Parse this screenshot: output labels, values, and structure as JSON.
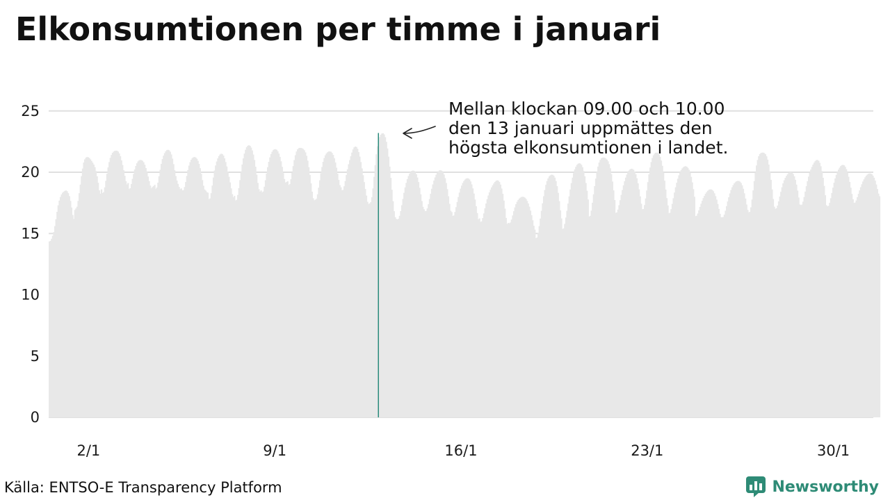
{
  "chart_data": {
    "type": "bar",
    "title": "Elkonsumtionen per timme i januari",
    "x_start": "2024-01-01T00:00",
    "x_step": "1 hour",
    "x_tick_labels": [
      "2/1",
      "9/1",
      "16/1",
      "23/1",
      "30/1"
    ],
    "y_tick_labels": [
      "0",
      "5",
      "10",
      "15",
      "20",
      "25"
    ],
    "ylim": [
      0,
      25
    ],
    "grid": true,
    "colors": {
      "bars": "#e8e8e8",
      "highlight": "#2a8a7a",
      "grid": "#e0e0e0"
    },
    "daily_profile": {
      "min": [
        14.3,
        16.8,
        18.2,
        18.5,
        18.5,
        18.3,
        17.7,
        17.6,
        18.3,
        18.9,
        18.9,
        17.7,
        17.1,
        16.7,
        16.4,
        16.1,
        15.9,
        15.8,
        14.6,
        15.3,
        16.3,
        16.6,
        16.9,
        16.6,
        16.4,
        16.3,
        16.7,
        17.0,
        17.3,
        17.2,
        17.5
      ],
      "max": [
        18.6,
        21.3,
        21.8,
        21.0,
        22.0,
        21.3,
        21.5,
        22.2,
        21.9,
        22.0,
        21.7,
        22.1,
        23.2,
        20.2,
        20.2,
        19.6,
        19.4,
        18.0,
        19.8,
        20.7,
        21.2,
        20.3,
        21.6,
        20.5,
        18.6,
        19.3,
        21.6,
        20.0,
        21.0,
        20.6,
        19.9
      ]
    },
    "series": [
      {
        "values": [
          14.35,
          14.4,
          14.57,
          14.81,
          15.12,
          15.6,
          16.17,
          16.77,
          17.3,
          17.69,
          17.98,
          18.19,
          18.33,
          18.41,
          18.48,
          18.51,
          18.45,
          18.29,
          18.05,
          17.66,
          17.12,
          16.51,
          16.19,
          16.92,
          17.04,
          17.19,
          17.66,
          18.29,
          18.99,
          19.68,
          20.3,
          20.79,
          21.05,
          21.18,
          21.24,
          21.22,
          21.16,
          21.05,
          20.92,
          20.78,
          20.62,
          20.42,
          20.1,
          19.67,
          19.14,
          18.52,
          18.25,
          18.6,
          18.3,
          18.37,
          18.76,
          19.3,
          19.87,
          20.39,
          20.83,
          21.17,
          21.41,
          21.58,
          21.68,
          21.74,
          21.76,
          21.75,
          21.68,
          21.53,
          21.3,
          20.97,
          20.59,
          20.16,
          19.71,
          19.27,
          19.0,
          19.12,
          18.63,
          18.7,
          19.04,
          19.46,
          19.86,
          20.22,
          20.51,
          20.73,
          20.88,
          20.97,
          21.0,
          20.99,
          20.93,
          20.81,
          20.61,
          20.34,
          20.01,
          19.65,
          19.28,
          18.91,
          18.69,
          18.79,
          18.87,
          18.97,
          18.63,
          18.75,
          19.15,
          19.67,
          20.2,
          20.68,
          21.07,
          21.35,
          21.56,
          21.71,
          21.8,
          21.83,
          21.79,
          21.67,
          21.45,
          21.11,
          20.66,
          20.16,
          19.69,
          19.32,
          19.05,
          18.8,
          18.62,
          18.68,
          18.52,
          18.54,
          18.79,
          19.2,
          19.7,
          20.18,
          20.54,
          20.82,
          21.02,
          21.15,
          21.22,
          21.24,
          21.2,
          21.1,
          20.93,
          20.68,
          20.33,
          19.87,
          19.36,
          18.9,
          18.59,
          18.5,
          18.38,
          18.33,
          17.8,
          17.86,
          18.29,
          18.91,
          19.57,
          20.14,
          20.55,
          20.87,
          21.13,
          21.32,
          21.45,
          21.51,
          21.48,
          21.36,
          21.13,
          20.83,
          20.47,
          20.06,
          19.63,
          19.17,
          18.68,
          18.21,
          17.96,
          18.07,
          17.7,
          17.75,
          18.14,
          18.7,
          19.36,
          20.02,
          20.63,
          21.13,
          21.52,
          21.83,
          22.04,
          22.16,
          22.2,
          22.15,
          22.01,
          21.78,
          21.44,
          21.0,
          20.45,
          19.8,
          19.13,
          18.62,
          18.41,
          18.51,
          18.36,
          18.43,
          18.82,
          19.35,
          19.9,
          20.41,
          20.85,
          21.21,
          21.48,
          21.67,
          21.8,
          21.87,
          21.88,
          21.83,
          21.71,
          21.52,
          21.25,
          20.89,
          20.44,
          19.93,
          19.45,
          19.16,
          19.2,
          19.26,
          18.96,
          19.03,
          19.43,
          19.96,
          20.5,
          20.99,
          21.39,
          21.69,
          21.87,
          21.96,
          21.99,
          21.98,
          21.95,
          21.89,
          21.79,
          21.62,
          21.34,
          20.94,
          20.41,
          19.78,
          19.09,
          18.41,
          17.88,
          17.71,
          17.76,
          17.83,
          18.2,
          18.74,
          19.34,
          19.92,
          20.43,
          20.85,
          21.16,
          21.38,
          21.53,
          21.63,
          21.69,
          21.7,
          21.67,
          21.57,
          21.41,
          21.15,
          20.8,
          20.37,
          19.88,
          19.37,
          18.95,
          18.77,
          18.53,
          18.56,
          18.85,
          19.28,
          19.77,
          20.24,
          20.65,
          20.99,
          21.31,
          21.6,
          21.86,
          22.03,
          22.1,
          22.06,
          21.91,
          21.64,
          21.27,
          20.83,
          20.31,
          19.76,
          19.19,
          18.63,
          18.09,
          17.59,
          17.4,
          17.46,
          17.56,
          17.96,
          18.68,
          19.63,
          20.58,
          21.46,
          22.12,
          22.57,
          22.87,
          23.06,
          23.16,
          23.18,
          23.09,
          22.86,
          22.48,
          21.94,
          21.27,
          20.46,
          19.54,
          18.57,
          17.63,
          16.82,
          16.33,
          16.19,
          16.15,
          16.2,
          16.44,
          16.83,
          17.31,
          17.82,
          18.32,
          18.76,
          19.13,
          19.44,
          19.69,
          19.88,
          20.02,
          20.11,
          20.14,
          20.11,
          20.02,
          19.84,
          19.57,
          19.2,
          18.73,
          18.2,
          17.65,
          17.18,
          16.98,
          16.83,
          16.85,
          17.05,
          17.39,
          17.81,
          18.24,
          18.65,
          19.01,
          19.32,
          19.58,
          19.8,
          19.96,
          20.08,
          20.15,
          20.16,
          20.12,
          20.01,
          19.81,
          19.52,
          19.12,
          18.62,
          18.04,
          17.42,
          16.86,
          16.75,
          16.43,
          16.48,
          16.76,
          17.15,
          17.57,
          17.98,
          18.34,
          18.66,
          18.91,
          19.12,
          19.28,
          19.4,
          19.48,
          19.51,
          19.49,
          19.41,
          19.25,
          19.01,
          18.68,
          18.26,
          17.77,
          17.23,
          16.67,
          16.16,
          16.23,
          15.95,
          15.99,
          16.26,
          16.64,
          17.06,
          17.45,
          17.8,
          18.1,
          18.35,
          18.57,
          18.76,
          18.93,
          19.08,
          19.21,
          19.3,
          19.34,
          19.31,
          19.2,
          18.99,
          18.67,
          18.24,
          17.69,
          17.03,
          16.27,
          15.78,
          15.86,
          15.84,
          15.9,
          16.14,
          16.47,
          16.82,
          17.13,
          17.39,
          17.59,
          17.74,
          17.85,
          17.93,
          17.98,
          18.0,
          17.98,
          17.92,
          17.82,
          17.66,
          17.45,
          17.19,
          16.87,
          16.5,
          16.08,
          15.63,
          15.32,
          14.62,
          14.68,
          15.05,
          15.6,
          16.22,
          16.85,
          17.46,
          18.04,
          18.55,
          18.97,
          19.28,
          19.5,
          19.66,
          19.75,
          19.8,
          19.79,
          19.72,
          19.56,
          19.28,
          18.87,
          18.32,
          17.64,
          16.89,
          16.23,
          15.37,
          15.42,
          15.78,
          16.3,
          16.86,
          17.44,
          18.03,
          18.59,
          19.11,
          19.56,
          19.93,
          20.23,
          20.44,
          20.6,
          20.69,
          20.73,
          20.7,
          20.6,
          20.41,
          20.1,
          19.67,
          19.12,
          18.49,
          17.78,
          16.38,
          16.44,
          16.87,
          17.51,
          18.2,
          18.87,
          19.48,
          20.02,
          20.46,
          20.79,
          21.0,
          21.13,
          21.19,
          21.2,
          21.18,
          21.12,
          21.03,
          20.89,
          20.66,
          20.32,
          19.85,
          19.24,
          18.52,
          17.73,
          16.68,
          16.72,
          16.95,
          17.31,
          17.72,
          18.15,
          18.55,
          18.93,
          19.27,
          19.56,
          19.81,
          20.0,
          20.14,
          20.24,
          20.28,
          20.27,
          20.2,
          20.06,
          19.83,
          19.51,
          19.1,
          18.6,
          18.03,
          17.43,
          16.98,
          17.0,
          17.32,
          17.86,
          18.51,
          19.19,
          19.83,
          20.38,
          20.83,
          21.16,
          21.38,
          21.52,
          21.59,
          21.6,
          21.57,
          21.46,
          21.26,
          20.95,
          20.52,
          19.97,
          19.31,
          18.59,
          17.89,
          17.29,
          16.65,
          16.7,
          16.99,
          17.42,
          17.88,
          18.34,
          18.77,
          19.14,
          19.47,
          19.75,
          19.98,
          20.17,
          20.31,
          20.41,
          20.47,
          20.49,
          20.45,
          20.36,
          20.2,
          19.96,
          19.62,
          19.17,
          18.62,
          18.0,
          16.42,
          16.45,
          16.63,
          16.89,
          17.17,
          17.43,
          17.67,
          17.89,
          18.07,
          18.24,
          18.37,
          18.48,
          18.56,
          18.6,
          18.6,
          18.55,
          18.45,
          18.28,
          18.05,
          17.76,
          17.41,
          17.01,
          16.61,
          16.33,
          16.33,
          16.35,
          16.54,
          16.86,
          17.23,
          17.61,
          17.96,
          18.27,
          18.55,
          18.77,
          18.95,
          19.09,
          19.19,
          19.26,
          19.29,
          19.29,
          19.23,
          19.12,
          18.93,
          18.65,
          18.28,
          17.85,
          17.37,
          16.92,
          16.73,
          16.77,
          17.14,
          17.77,
          18.52,
          19.28,
          19.97,
          20.55,
          21.0,
          21.31,
          21.48,
          21.57,
          21.6,
          21.6,
          21.56,
          21.47,
          21.3,
          21.03,
          20.62,
          20.07,
          19.38,
          18.6,
          17.82,
          17.19,
          17.02,
          17.06,
          17.28,
          17.62,
          18.01,
          18.4,
          18.77,
          19.09,
          19.34,
          19.54,
          19.7,
          19.83,
          19.93,
          19.99,
          20.0,
          19.96,
          19.86,
          19.67,
          19.38,
          18.99,
          18.5,
          17.94,
          17.37,
          17.32,
          17.36,
          17.6,
          17.98,
          18.42,
          18.86,
          19.27,
          19.64,
          19.95,
          20.21,
          20.43,
          20.62,
          20.78,
          20.91,
          20.99,
          21.0,
          20.93,
          20.77,
          20.49,
          20.09,
          19.55,
          18.88,
          18.12,
          17.31,
          17.22,
          17.26,
          17.5,
          17.88,
          18.31,
          18.74,
          19.14,
          19.49,
          19.78,
          20.02,
          20.21,
          20.37,
          20.5,
          20.58,
          20.6,
          20.56,
          20.44,
          20.25,
          19.98,
          19.63,
          19.21,
          18.74,
          18.23,
          17.79,
          17.5,
          17.53,
          17.7,
          17.96,
          18.24,
          18.52,
          18.78,
          19.02,
          19.24,
          19.42,
          19.58,
          19.71,
          19.81,
          19.87,
          19.9,
          19.89,
          19.83,
          19.72,
          19.55,
          19.31,
          19.0,
          18.63,
          18.26,
          18.04
        ]
      }
    ],
    "highlight": {
      "x": "2024-01-13T09:00",
      "y": 23.2
    },
    "annotation_lines": [
      "Mellan klockan 09.00 och 10.00",
      "den 13 januari uppmättes den",
      "högsta elkonsumtionen i landet."
    ]
  },
  "source_note": "Källa: ENTSO-E Transparency Platform",
  "brand": {
    "name": "Newsworthy",
    "logo_icon": "bar-chart-speech-bubble-icon",
    "color": "#2e8b76"
  }
}
